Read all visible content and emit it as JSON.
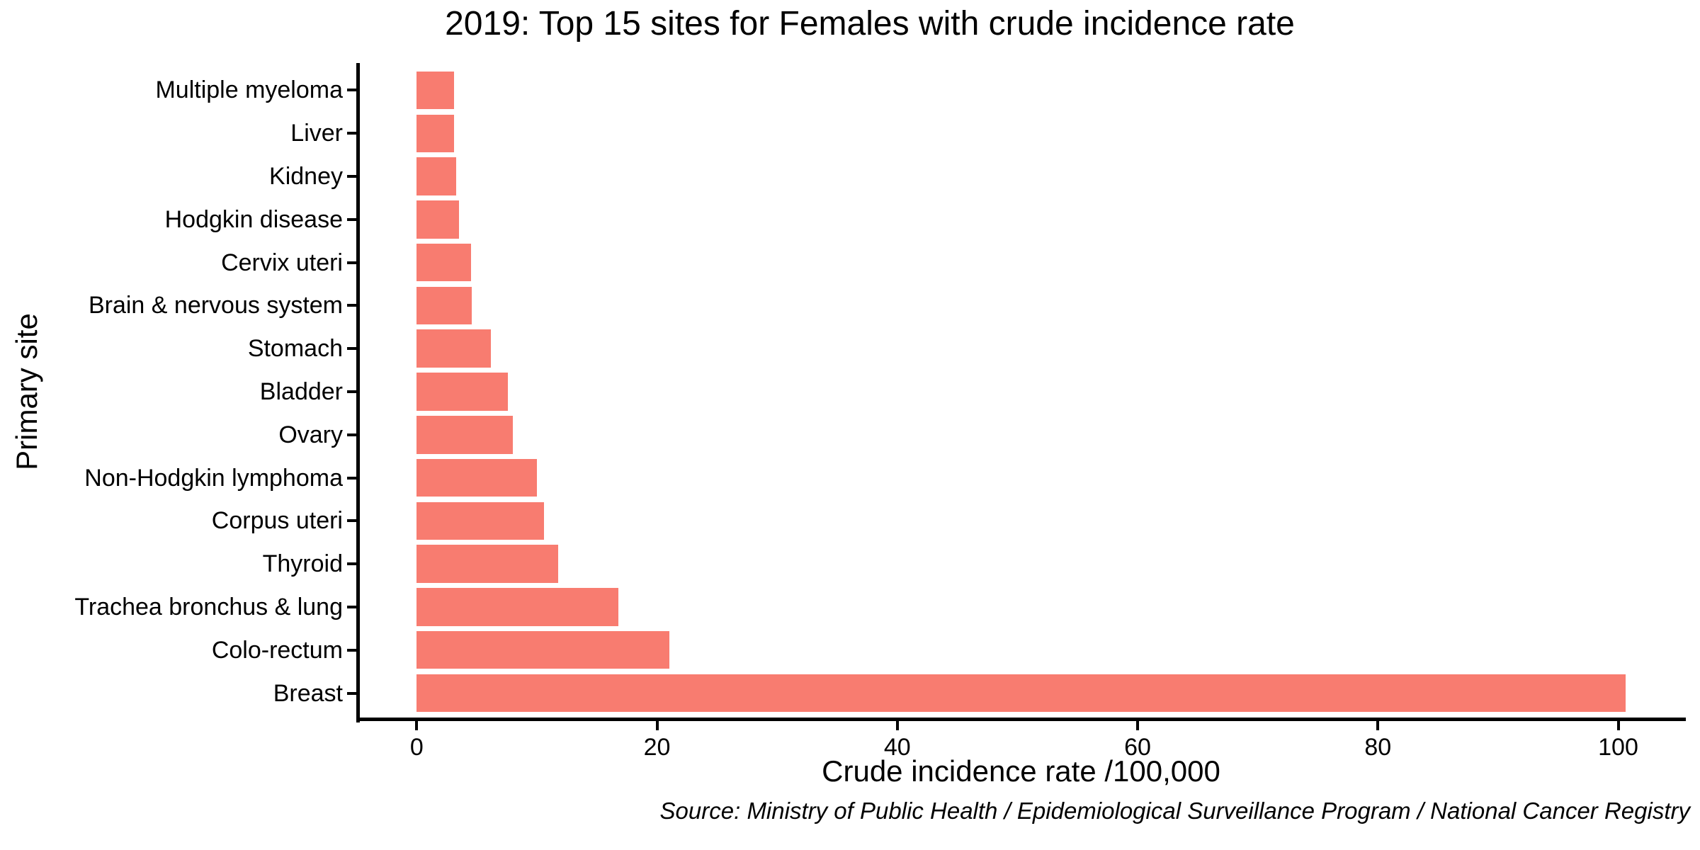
{
  "chart_data": {
    "type": "bar",
    "orientation": "horizontal",
    "title": "2019: Top 15 sites for Females with crude incidence rate",
    "xlabel": "Crude incidence rate /100,000",
    "ylabel": "Primary site",
    "source_note": "Source: Ministry of Public Health / Epidemiological Surveillance Program / National Cancer Registry",
    "categories": [
      "Multiple myeloma",
      "Liver",
      "Kidney",
      "Hodgkin disease",
      "Cervix uteri",
      "Brain & nervous system",
      "Stomach",
      "Bladder",
      "Ovary",
      "Non-Hodgkin lymphoma",
      "Corpus uteri",
      "Thyroid",
      "Trachea bronchus & lung",
      "Colo-rectum",
      "Breast"
    ],
    "values": [
      3.1,
      3.1,
      3.3,
      3.5,
      4.5,
      4.6,
      6.2,
      7.6,
      8.0,
      10.0,
      10.6,
      11.8,
      16.8,
      21.0,
      100.6
    ],
    "category_order": "smallest at top, largest at bottom",
    "x_ticks": [
      0,
      20,
      40,
      60,
      80,
      100
    ],
    "xlim": [
      0,
      100.6
    ],
    "grid": false,
    "legend": false,
    "bar_color": "#F87C70",
    "axis_color": "#000000",
    "text_color": "#000000",
    "background_color": "#FFFFFF"
  }
}
